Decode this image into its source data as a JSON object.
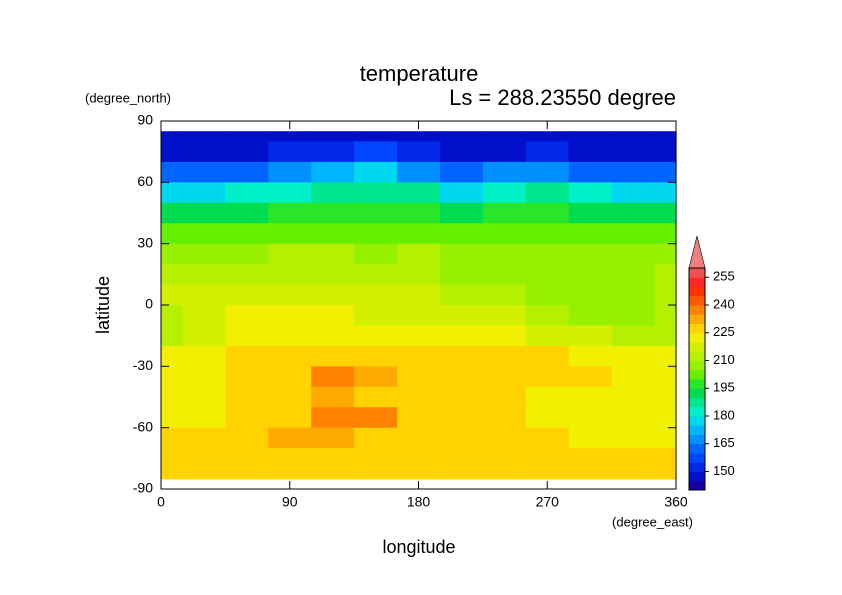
{
  "chart_data": {
    "type": "contour",
    "title": "temperature",
    "subtitle": "Ls = 288.23550 degree",
    "x_label": "longitude",
    "y_label": "latitude",
    "x_units": "(degree_east)",
    "y_units": "(degree_north)",
    "x": [
      0,
      30,
      60,
      90,
      120,
      150,
      180,
      210,
      240,
      270,
      300,
      330,
      360
    ],
    "y": [
      85,
      75,
      65,
      55,
      45,
      35,
      25,
      15,
      5,
      -5,
      -15,
      -25,
      -35,
      -45,
      -55,
      -65,
      -75,
      -85
    ],
    "values": [
      [
        145,
        145,
        145,
        145,
        145,
        145,
        145,
        145,
        145,
        145,
        145,
        145,
        145
      ],
      [
        148,
        148,
        148,
        150,
        152,
        155,
        150,
        148,
        148,
        150,
        148,
        148,
        148
      ],
      [
        160,
        160,
        162,
        165,
        170,
        175,
        168,
        160,
        165,
        168,
        160,
        160,
        160
      ],
      [
        178,
        178,
        180,
        182,
        185,
        188,
        185,
        178,
        182,
        185,
        180,
        178,
        178
      ],
      [
        192,
        192,
        193,
        195,
        195,
        197,
        195,
        192,
        195,
        195,
        193,
        192,
        192
      ],
      [
        200,
        200,
        200,
        202,
        202,
        203,
        202,
        200,
        200,
        200,
        200,
        200,
        200
      ],
      [
        207,
        207,
        208,
        210,
        210,
        208,
        210,
        207,
        205,
        205,
        205,
        205,
        207
      ],
      [
        212,
        212,
        213,
        213,
        212,
        212,
        210,
        208,
        205,
        205,
        205,
        205,
        210
      ],
      [
        215,
        217,
        218,
        218,
        215,
        215,
        215,
        213,
        210,
        208,
        208,
        207,
        210
      ],
      [
        213,
        218,
        220,
        220,
        220,
        218,
        218,
        218,
        215,
        210,
        208,
        208,
        210
      ],
      [
        213,
        218,
        222,
        223,
        223,
        222,
        222,
        220,
        220,
        218,
        215,
        213,
        212
      ],
      [
        220,
        222,
        226,
        226,
        228,
        228,
        226,
        226,
        226,
        226,
        222,
        222,
        220
      ],
      [
        222,
        223,
        226,
        228,
        236,
        231,
        228,
        227,
        227,
        227,
        226,
        222,
        222
      ],
      [
        222,
        223,
        227,
        228,
        230,
        227,
        228,
        227,
        227,
        222,
        222,
        222,
        222
      ],
      [
        222,
        223,
        227,
        228,
        236,
        237,
        228,
        227,
        227,
        222,
        222,
        222,
        222
      ],
      [
        226,
        227,
        228,
        230,
        230,
        228,
        228,
        228,
        228,
        226,
        222,
        222,
        223
      ],
      [
        228,
        228,
        228,
        228,
        228,
        228,
        228,
        228,
        228,
        228,
        228,
        228,
        228
      ],
      [
        228,
        228,
        228,
        228,
        228,
        228,
        228,
        228,
        228,
        228,
        228,
        228,
        228
      ]
    ],
    "xlim": [
      0,
      360
    ],
    "ylim": [
      -90,
      90
    ],
    "xticks": [
      0,
      90,
      180,
      270,
      360
    ],
    "yticks": [
      -90,
      -60,
      -30,
      0,
      30,
      60,
      90
    ],
    "colorbar": {
      "levels": [
        140,
        145,
        150,
        155,
        160,
        165,
        170,
        175,
        180,
        185,
        190,
        195,
        200,
        205,
        210,
        215,
        220,
        225,
        230,
        235,
        240,
        245,
        250,
        255,
        260
      ],
      "colors": [
        "#1400a0",
        "#0010c8",
        "#0028e6",
        "#0046ff",
        "#0064ff",
        "#0090ff",
        "#00b4ff",
        "#00d8f0",
        "#00f0c8",
        "#00e68c",
        "#00dc50",
        "#28e628",
        "#64f000",
        "#96f000",
        "#b4f000",
        "#d2f000",
        "#f0f000",
        "#ffd200",
        "#ffaa00",
        "#ff8200",
        "#ff5a00",
        "#ff3200",
        "#ff2828",
        "#f05050"
      ],
      "ticks": [
        150,
        165,
        180,
        195,
        210,
        225,
        240,
        255
      ],
      "extend_color": "#f08080"
    }
  }
}
